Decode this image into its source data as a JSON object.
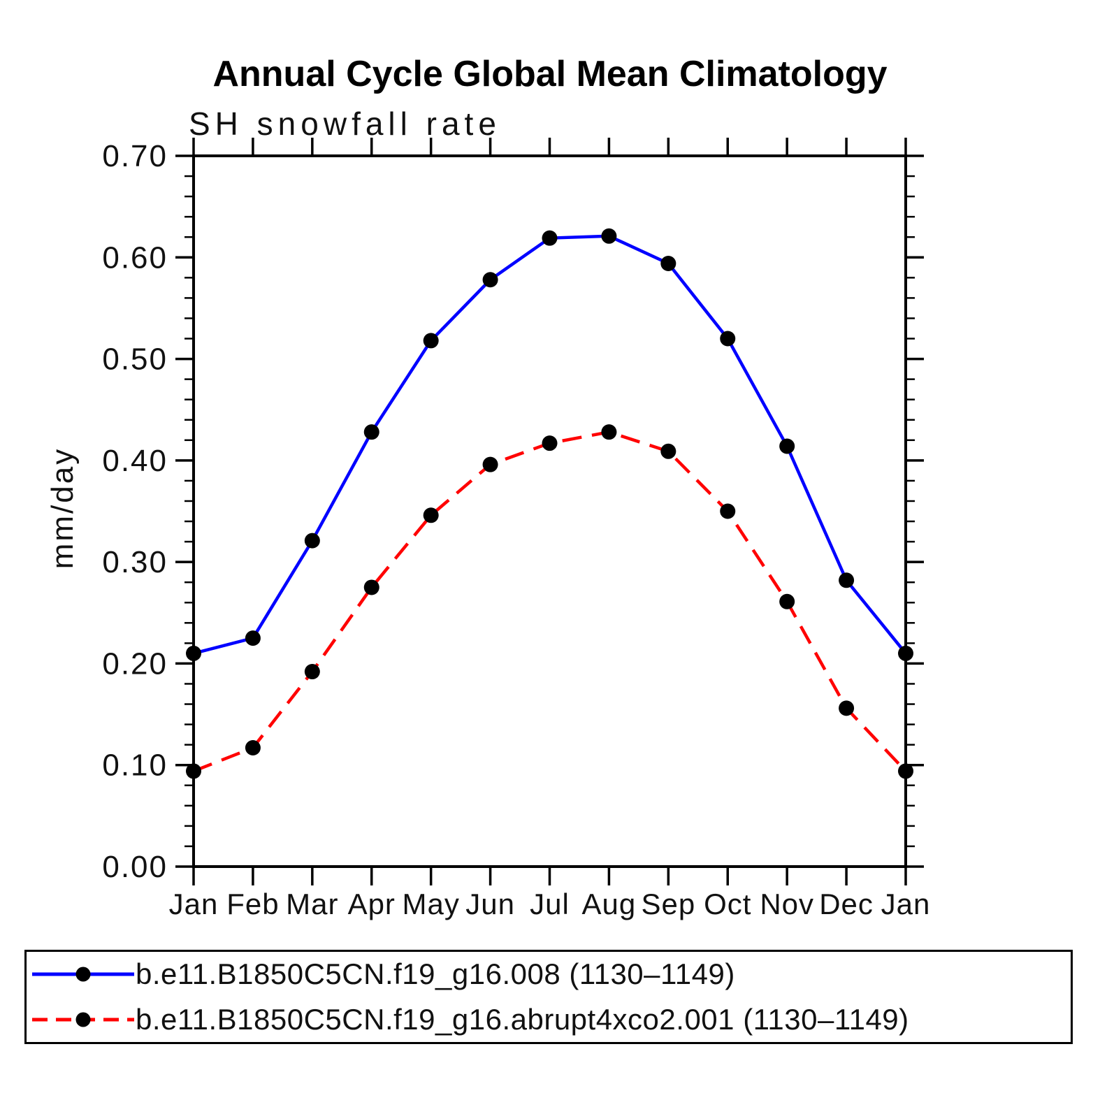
{
  "title": "Annual Cycle Global Mean Climatology",
  "chart_data": {
    "type": "line",
    "title": "Annual Cycle Global Mean Climatology",
    "subtitle": "SH snowfall rate",
    "xlabel": "",
    "ylabel": "mm/day",
    "ylim": [
      0.0,
      0.7
    ],
    "yticks": [
      0.0,
      0.1,
      0.2,
      0.3,
      0.4,
      0.5,
      0.6,
      0.7
    ],
    "ytick_label_format": "2dp",
    "minor_tick_step": 0.02,
    "grid": false,
    "legend_position": "bottom",
    "categories": [
      "Jan",
      "Feb",
      "Mar",
      "Apr",
      "May",
      "Jun",
      "Jul",
      "Aug",
      "Sep",
      "Oct",
      "Nov",
      "Dec",
      "Jan"
    ],
    "series": [
      {
        "name": "b.e11.B1850C5CN.f19_g16.008 (1130–1149)",
        "color": "#0000ff",
        "line_style": "solid",
        "marker": "filled-circle",
        "marker_color": "#000000",
        "values": [
          0.21,
          0.225,
          0.321,
          0.428,
          0.518,
          0.578,
          0.619,
          0.621,
          0.594,
          0.52,
          0.414,
          0.282,
          0.21
        ]
      },
      {
        "name": "b.e11.B1850C5CN.f19_g16.abrupt4xco2.001 (1130–1149)",
        "color": "#ff0000",
        "line_style": "dashed",
        "marker": "filled-circle",
        "marker_color": "#000000",
        "values": [
          0.094,
          0.117,
          0.192,
          0.275,
          0.346,
          0.396,
          0.417,
          0.428,
          0.409,
          0.35,
          0.261,
          0.156,
          0.094
        ]
      }
    ]
  }
}
